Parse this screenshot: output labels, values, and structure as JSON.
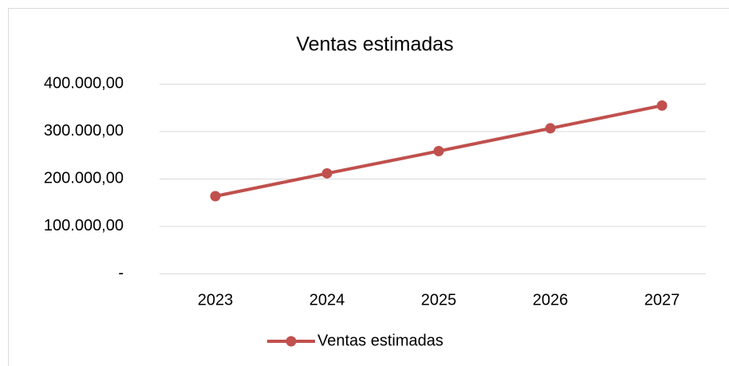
{
  "chart_data": {
    "type": "line",
    "title": "Ventas estimadas",
    "categories": [
      "2023",
      "2024",
      "2025",
      "2026",
      "2027"
    ],
    "series": [
      {
        "name": "Ventas estimadas",
        "color": "#c0504d",
        "values": [
          163000,
          211000,
          258000,
          306000,
          354000
        ]
      }
    ],
    "ylim": [
      0,
      400000
    ],
    "yticks": [
      {
        "value": 0,
        "label": "-"
      },
      {
        "value": 100000,
        "label": "100.000,00"
      },
      {
        "value": 200000,
        "label": "200.000,00"
      },
      {
        "value": 300000,
        "label": "300.000,00"
      },
      {
        "value": 400000,
        "label": "400.000,00"
      }
    ],
    "grid": true,
    "legend": "bottom"
  }
}
